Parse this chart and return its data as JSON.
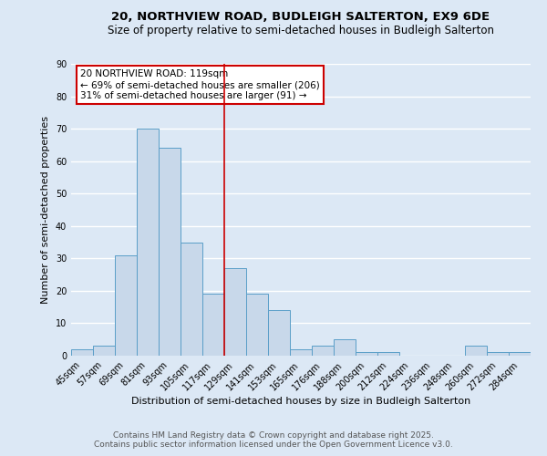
{
  "title": "20, NORTHVIEW ROAD, BUDLEIGH SALTERTON, EX9 6DE",
  "subtitle": "Size of property relative to semi-detached houses in Budleigh Salterton",
  "xlabel": "Distribution of semi-detached houses by size in Budleigh Salterton",
  "ylabel": "Number of semi-detached properties",
  "categories": [
    "45sqm",
    "57sqm",
    "69sqm",
    "81sqm",
    "93sqm",
    "105sqm",
    "117sqm",
    "129sqm",
    "141sqm",
    "153sqm",
    "165sqm",
    "176sqm",
    "188sqm",
    "200sqm",
    "212sqm",
    "224sqm",
    "236sqm",
    "248sqm",
    "260sqm",
    "272sqm",
    "284sqm"
  ],
  "values": [
    2,
    3,
    31,
    70,
    64,
    35,
    19,
    27,
    19,
    14,
    2,
    3,
    5,
    1,
    1,
    0,
    0,
    0,
    3,
    1,
    1
  ],
  "bar_color": "#c8d8ea",
  "bar_edge_color": "#5a9ec8",
  "bg_color": "#dce8f5",
  "plot_bg_color": "#dce8f5",
  "grid_color": "#ffffff",
  "vline_x": 6.5,
  "vline_color": "#cc0000",
  "annotation_title": "20 NORTHVIEW ROAD: 119sqm",
  "annotation_line1": "← 69% of semi-detached houses are smaller (206)",
  "annotation_line2": "31% of semi-detached houses are larger (91) →",
  "annotation_box_color": "#cc0000",
  "footer_line1": "Contains HM Land Registry data © Crown copyright and database right 2025.",
  "footer_line2": "Contains public sector information licensed under the Open Government Licence v3.0.",
  "ylim": [
    0,
    90
  ],
  "yticks": [
    0,
    10,
    20,
    30,
    40,
    50,
    60,
    70,
    80,
    90
  ],
  "title_fontsize": 9.5,
  "subtitle_fontsize": 8.5,
  "xlabel_fontsize": 8,
  "ylabel_fontsize": 8,
  "tick_fontsize": 7,
  "footer_fontsize": 6.5,
  "annotation_fontsize": 7.5
}
